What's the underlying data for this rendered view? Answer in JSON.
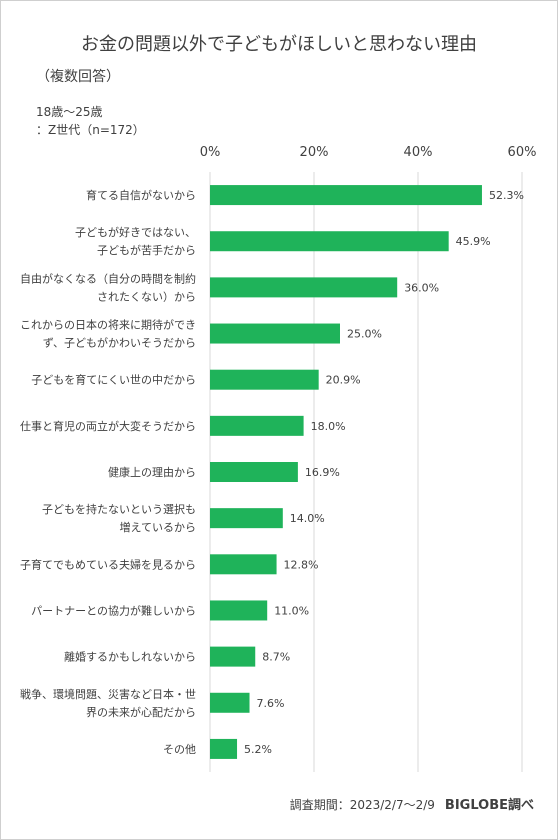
{
  "title": "お金の問題以外で子どもがほしいと思わない理由",
  "subtitle": "（複数回答）",
  "notes": {
    "age": "18歳～25歳",
    "group": "：Z世代（n=172）"
  },
  "footer": {
    "period": "調査期間：2023/2/7～2/9",
    "brand": "BIGLOBE調べ"
  },
  "colors": {
    "bar": "#1fb35a",
    "grid": "#d9d9d9"
  },
  "chart_data": {
    "type": "bar",
    "orientation": "horizontal",
    "xlim": [
      0,
      60
    ],
    "ticks": [
      0,
      20,
      40,
      60
    ],
    "tick_labels": [
      "0%",
      "20%",
      "40%",
      "60%"
    ],
    "grid": true,
    "categories": [
      [
        "育てる自信がないから"
      ],
      [
        "子どもが好きではない、",
        "子どもが苦手だから"
      ],
      [
        "自由がなくなる（自分の時間を制約",
        "されたくない）から"
      ],
      [
        "これからの日本の将来に期待ができ",
        "ず、子どもがかわいそうだから"
      ],
      [
        "子どもを育てにくい世の中だから"
      ],
      [
        "仕事と育児の両立が大変そうだから"
      ],
      [
        "健康上の理由から"
      ],
      [
        "子どもを持たないという選択も",
        "増えているから"
      ],
      [
        "子育てでもめている夫婦を見るから"
      ],
      [
        "パートナーとの協力が難しいから"
      ],
      [
        "離婚するかもしれないから"
      ],
      [
        "戦争、環境問題、災害など日本・世",
        "界の未来が心配だから"
      ],
      [
        "その他"
      ]
    ],
    "values": [
      52.3,
      45.9,
      36.0,
      25.0,
      20.9,
      18.0,
      16.9,
      14.0,
      12.8,
      11.0,
      8.7,
      7.6,
      5.2
    ],
    "value_labels": [
      "52.3%",
      "45.9%",
      "36.0%",
      "25.0%",
      "20.9%",
      "18.0%",
      "16.9%",
      "14.0%",
      "12.8%",
      "11.0%",
      "8.7%",
      "7.6%",
      "5.2%"
    ]
  }
}
